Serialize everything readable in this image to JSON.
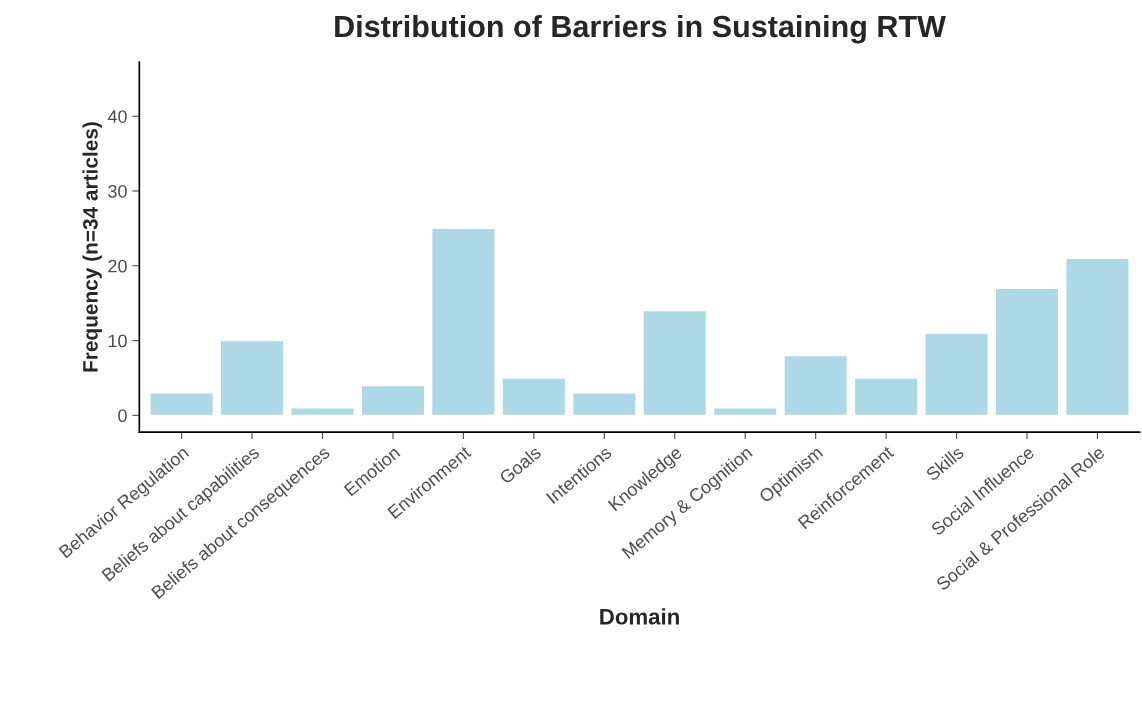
{
  "chart_data": {
    "type": "bar",
    "title": "Distribution of Barriers in Sustaining RTW",
    "xlabel": "Domain",
    "ylabel": "Frequency (n=34 articles)",
    "categories": [
      "Behavior Regulation",
      "Beliefs about capabilities",
      "Beliefs about consequences",
      "Emotion",
      "Environment",
      "Goals",
      "Intentions",
      "Knowledge",
      "Memory & Cognition",
      "Optimism",
      "Reinforcement",
      "Skills",
      "Social Influence",
      "Social & Professional Role"
    ],
    "values": [
      3,
      10,
      1,
      4,
      25,
      5,
      3,
      14,
      1,
      8,
      5,
      11,
      17,
      21
    ],
    "color": "#add8e6",
    "ylim": [
      -2.25,
      47.25
    ],
    "yticks": [
      0,
      10,
      20,
      30,
      40
    ],
    "grid": false,
    "legend": false
  }
}
